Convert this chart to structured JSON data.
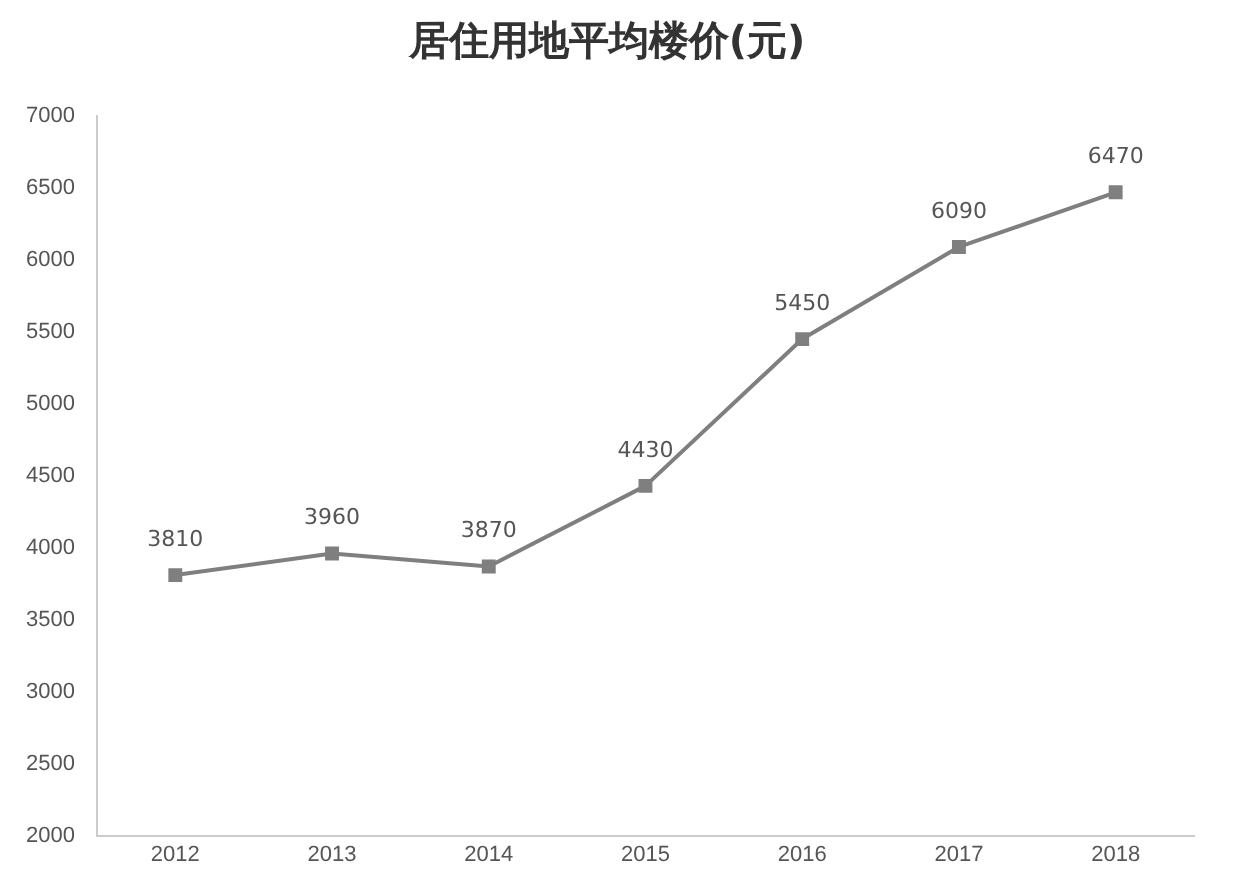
{
  "chart_data": {
    "type": "line",
    "title": "居住用地平均楼价(元)",
    "categories": [
      "2012",
      "2013",
      "2014",
      "2015",
      "2016",
      "2017",
      "2018"
    ],
    "series": [
      {
        "color": "#7f7f7f",
        "values": [
          3810,
          3960,
          3870,
          4430,
          5450,
          6090,
          6470
        ]
      }
    ],
    "ylim": [
      2000,
      7000
    ],
    "yticks": [
      2000,
      2500,
      3000,
      3500,
      4000,
      4500,
      5000,
      5500,
      6000,
      6500,
      7000
    ],
    "grid": false,
    "legend": false,
    "marker": "square",
    "line_style": "solid",
    "data_labels": true
  }
}
